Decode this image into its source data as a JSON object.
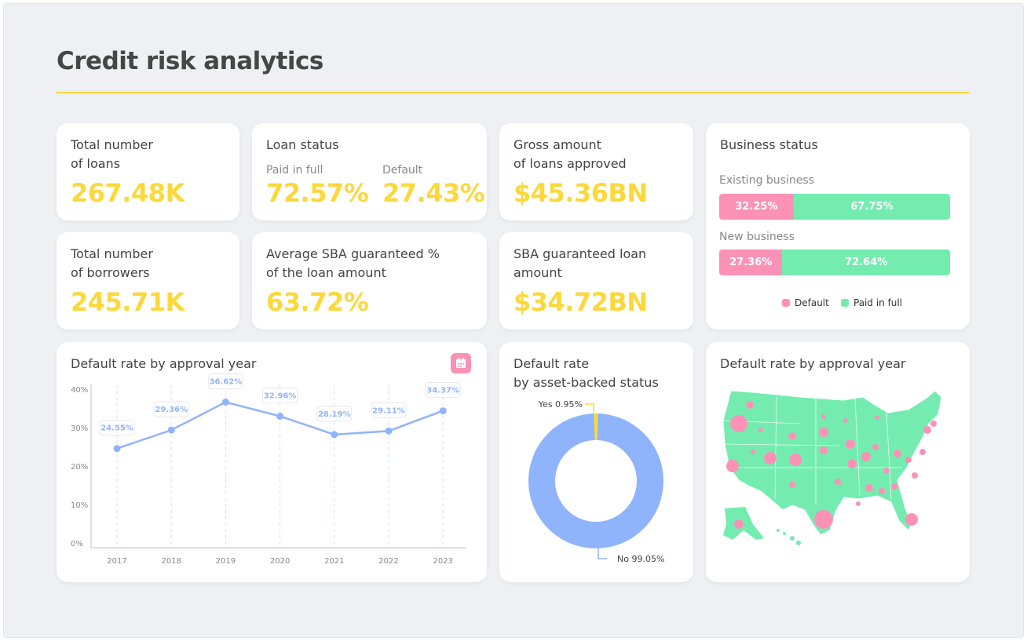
{
  "title": "Credit risk analytics",
  "colors": {
    "accent_yellow": "#fcd83a",
    "default_pink": "#fb92b6",
    "paid_green": "#74ecb0",
    "line_blue": "#8fb4fb"
  },
  "kpis": {
    "loans": {
      "title": "Total number\nof loans",
      "value": "267.48K"
    },
    "status": {
      "title": "Loan status",
      "paid_label": "Paid in full",
      "paid_value": "72.57%",
      "default_label": "Default",
      "default_value": "27.43%"
    },
    "gross": {
      "title": "Gross amount\nof loans approved",
      "value": "$45.36BN"
    },
    "borrowers": {
      "title": "Total number\nof borrowers",
      "value": "245.71K"
    },
    "sba_pct": {
      "title": "Average SBA guaranteed %\nof the loan amount",
      "value": "63.72%"
    },
    "sba_amt": {
      "title": "SBA guaranteed loan\namount",
      "value": "$34.72BN"
    }
  },
  "business": {
    "title": "Business status",
    "rows": [
      {
        "label": "Existing business",
        "default": "32.25%",
        "paid": "67.75%",
        "default_value": 32.25
      },
      {
        "label": "New business",
        "default": "27.36%",
        "paid": "72.64%",
        "default_value": 27.36
      }
    ],
    "legend": [
      "Default",
      "Paid in full"
    ]
  },
  "map": {
    "title": "Default rate by approval year"
  },
  "calendar_icon": "calendar-icon",
  "chart_data": [
    {
      "type": "line",
      "title": "Default rate by approval year",
      "categories": [
        "2017",
        "2018",
        "2019",
        "2020",
        "2021",
        "2022",
        "2023"
      ],
      "values": [
        24.55,
        29.36,
        36.62,
        32.96,
        28.19,
        29.11,
        34.37
      ],
      "labels": [
        "24.55%",
        "29.36%",
        "36.62%",
        "32.96%",
        "28.19%",
        "29.11%",
        "34.37%"
      ],
      "yticks": [
        "0%",
        "10%",
        "20%",
        "30%",
        "40%"
      ],
      "ylim": [
        0,
        40
      ],
      "grid": "vertical dashed"
    },
    {
      "type": "pie",
      "title": "Default rate\nby asset-backed status",
      "slices": [
        {
          "label": "Yes 0.95%",
          "value": 0.95,
          "color": "#fcd83a"
        },
        {
          "label": "No 99.05%",
          "value": 99.05,
          "color": "#8fb4fb"
        }
      ]
    }
  ]
}
